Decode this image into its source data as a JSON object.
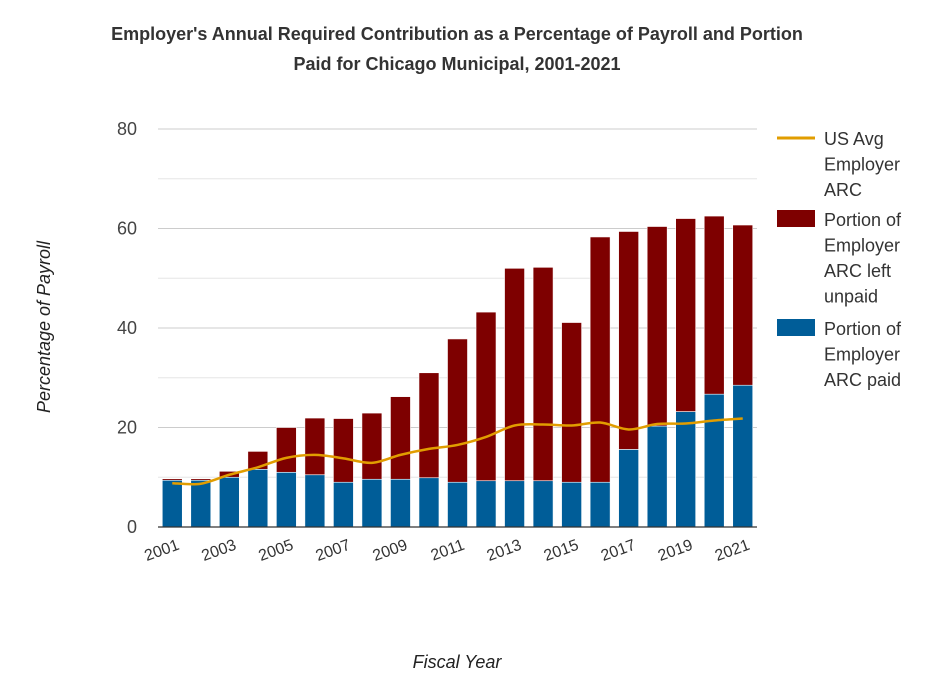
{
  "chart_data": {
    "type": "bar",
    "stacked": true,
    "title_lines": [
      "Employer's Annual Required Contribution as a Percentage of Payroll and Portion",
      "Paid for Chicago Municipal, 2001-2021"
    ],
    "xlabel": "Fiscal Year",
    "ylabel": "Percentage of Payroll",
    "ylim": [
      0,
      80
    ],
    "yticks": [
      0,
      20,
      40,
      60,
      80
    ],
    "grid": true,
    "legend_position": "right",
    "categories": [
      "2001",
      "2002",
      "2003",
      "2004",
      "2005",
      "2006",
      "2007",
      "2008",
      "2009",
      "2010",
      "2011",
      "2012",
      "2013",
      "2014",
      "2015",
      "2016",
      "2017",
      "2018",
      "2019",
      "2020",
      "2021"
    ],
    "xtick_labels": [
      "2001",
      "2003",
      "2005",
      "2007",
      "2009",
      "2011",
      "2013",
      "2015",
      "2017",
      "2019",
      "2021"
    ],
    "series": [
      {
        "name": "Portion of Employer ARC paid",
        "legend_lines": [
          "Portion of",
          "Employer",
          "ARC paid"
        ],
        "color": "#005d98",
        "values": [
          9.4,
          9.4,
          10.0,
          11.6,
          11.0,
          10.5,
          9.0,
          9.6,
          9.6,
          9.9,
          9.0,
          9.3,
          9.3,
          9.3,
          9.0,
          9.0,
          15.6,
          20.3,
          23.2,
          26.7,
          28.5
        ]
      },
      {
        "name": "Portion of Employer ARC left unpaid",
        "legend_lines": [
          "Portion of",
          "Employer",
          "ARC left",
          "unpaid"
        ],
        "color": "#7e0000",
        "values": [
          0.3,
          0.3,
          1.2,
          3.6,
          9.0,
          11.4,
          12.8,
          13.3,
          16.6,
          21.1,
          28.8,
          33.9,
          42.7,
          42.9,
          32.1,
          49.3,
          43.8,
          40.1,
          38.8,
          35.8,
          32.2
        ]
      }
    ],
    "line_series": {
      "name": "US Avg Employer ARC",
      "legend_lines": [
        "US Avg",
        "Employer",
        "ARC"
      ],
      "color": "#e19d00",
      "values": [
        8.8,
        8.7,
        10.5,
        12.0,
        13.9,
        14.5,
        13.8,
        12.9,
        14.5,
        15.7,
        16.5,
        18.1,
        20.4,
        20.6,
        20.4,
        21.0,
        19.6,
        20.7,
        20.8,
        21.4,
        21.8
      ]
    },
    "colors": {
      "grid": "#cccccc",
      "minor_grid": "#e6e6e6",
      "axis": "#333333"
    }
  }
}
